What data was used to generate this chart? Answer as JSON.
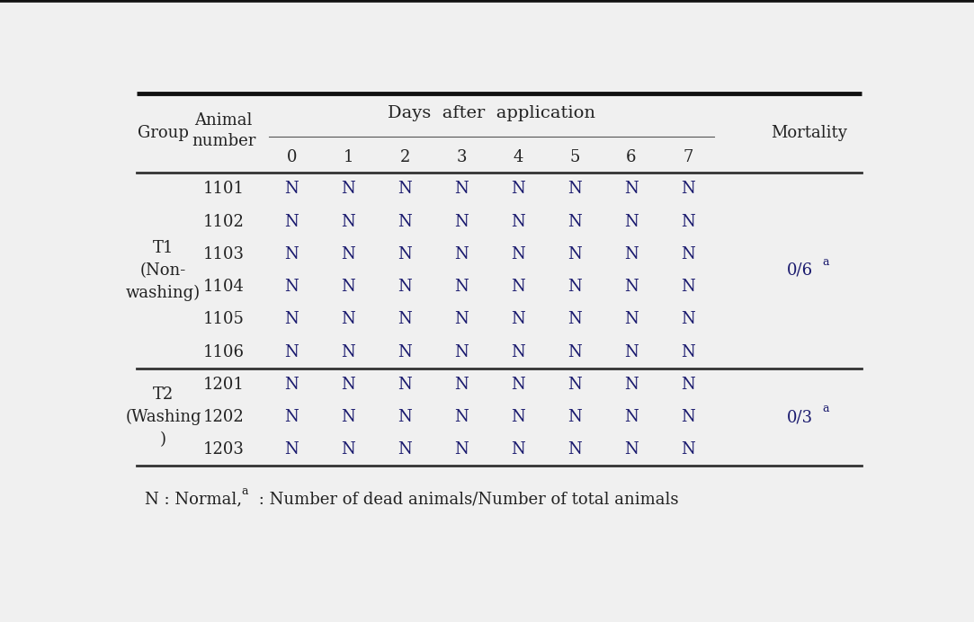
{
  "background_color": "#f0f0f0",
  "top_border_color": "#111111",
  "line_color": "#555555",
  "thick_line_color": "#333333",
  "text_color": "#222222",
  "n_color": "#1a1a6e",
  "mortality_color": "#1a1a6e",
  "days_header": [
    "0",
    "1",
    "2",
    "3",
    "4",
    "5",
    "6",
    "7"
  ],
  "groups": [
    {
      "group_label": "T1\n(Non-\nwashing)",
      "animals": [
        "1101",
        "1102",
        "1103",
        "1104",
        "1105",
        "1106"
      ],
      "mortality_plain": "0/6",
      "mortality_super": "a"
    },
    {
      "group_label": "T2\n(Washing\n)",
      "animals": [
        "1201",
        "1202",
        "1203"
      ],
      "mortality_plain": "0/3",
      "mortality_super": "a"
    }
  ],
  "cell_value": "N",
  "font_size": 13,
  "header_font_size": 13,
  "super_font_size": 9
}
